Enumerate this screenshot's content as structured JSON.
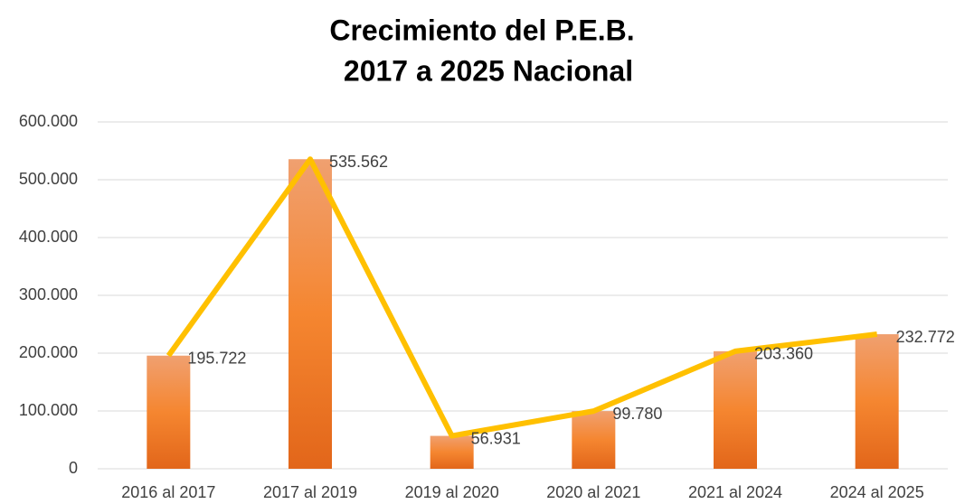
{
  "chart_data": {
    "type": "combo",
    "title": [
      "Crecimiento del P.E.B.",
      "2017 a 2025 Nacional"
    ],
    "categories": [
      "2016 al 2017",
      "2017 al 2019",
      "2019 al 2020",
      "2020 al 2021",
      "2021 al 2024",
      "2024 al 2025"
    ],
    "values": [
      195722,
      535562,
      56931,
      99780,
      203360,
      232772
    ],
    "value_labels": [
      "195.722",
      "535.562",
      "56.931",
      "99.780",
      "203.360",
      "232.772"
    ],
    "color": "#ed7d31",
    "line_color": "#ffc000",
    "ylim": [
      0,
      600000
    ],
    "yticks": [
      0,
      {
        "value": 100000,
        "label": "100.000"
      },
      {
        "value": 200000,
        "label": "200.000"
      },
      {
        "value": 300000,
        "label": "300.000"
      },
      {
        "value": 400000,
        "label": "400.000"
      },
      {
        "value": 500000,
        "label": "500.000"
      },
      {
        "value": 600000,
        "label": "600.000"
      }
    ],
    "grid": true
  }
}
